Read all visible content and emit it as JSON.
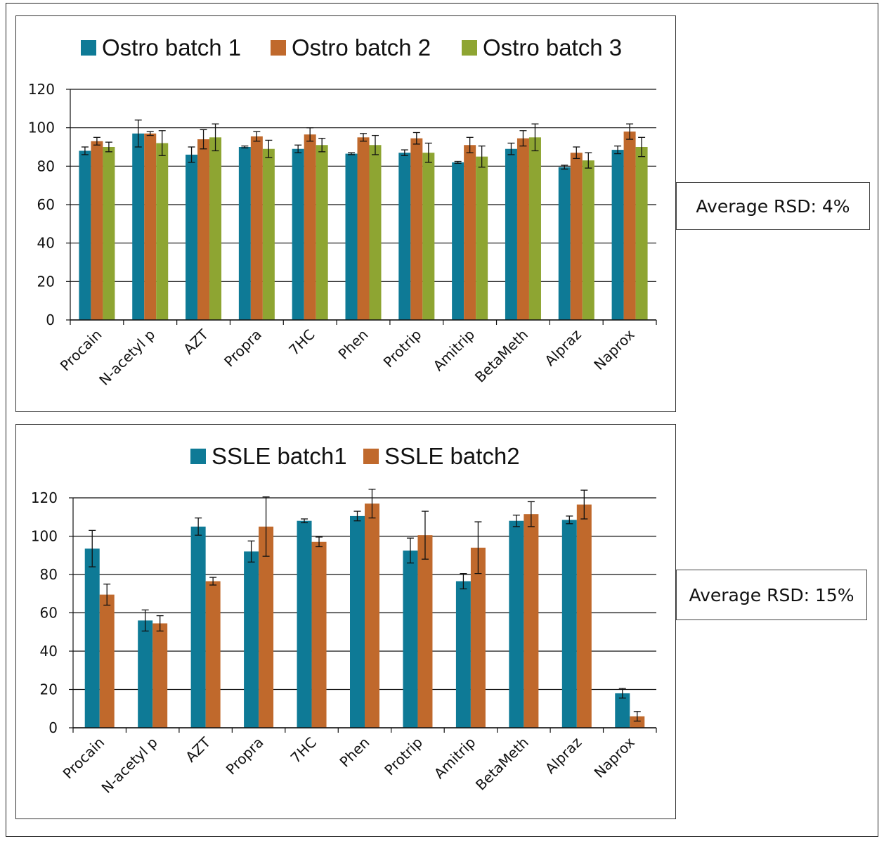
{
  "chart_data": [
    {
      "type": "bar",
      "title": "",
      "xlabel": "",
      "ylabel": "",
      "ylim": [
        0,
        120
      ],
      "yticks": [
        0,
        20,
        40,
        60,
        80,
        100,
        120
      ],
      "grid": "horizontal",
      "legend_position": "top",
      "categories": [
        "Procain",
        "N-acetyl p",
        "AZT",
        "Propra",
        "7HC",
        "Phen",
        "Protrip",
        "Amitrip",
        "BetaMeth",
        "Alpraz",
        "Naprox"
      ],
      "series": [
        {
          "name": "Ostro batch 1",
          "color": "#0e7a96",
          "values": [
            88,
            97,
            86,
            90,
            89,
            86.5,
            87,
            82,
            89,
            79.5,
            88.5
          ],
          "errors": [
            2,
            7,
            4,
            0.5,
            2,
            0.5,
            1.5,
            0.5,
            3,
            1,
            2
          ]
        },
        {
          "name": "Ostro batch 2",
          "color": "#c0692c",
          "values": [
            93,
            97,
            94,
            95.5,
            96.5,
            95,
            94.5,
            91,
            94.5,
            87,
            98
          ],
          "errors": [
            2,
            1,
            5,
            2.5,
            3.5,
            2,
            3,
            4,
            4,
            3,
            4
          ]
        },
        {
          "name": "Ostro batch 3",
          "color": "#8ea532",
          "values": [
            90,
            92,
            95,
            89,
            91,
            91,
            87,
            85,
            95,
            83,
            90
          ],
          "errors": [
            2.5,
            6.5,
            7,
            4.5,
            3.5,
            5,
            5,
            5.5,
            7,
            4,
            5
          ]
        }
      ]
    },
    {
      "type": "bar",
      "title": "",
      "xlabel": "",
      "ylabel": "",
      "ylim": [
        0,
        120
      ],
      "yticks": [
        0,
        20,
        40,
        60,
        80,
        100,
        120
      ],
      "grid": "horizontal",
      "legend_position": "top",
      "categories": [
        "Procain",
        "N-acetyl p",
        "AZT",
        "Propra",
        "7HC",
        "Phen",
        "Protrip",
        "Amitrip",
        "BetaMeth",
        "Alpraz",
        "Naprox"
      ],
      "series": [
        {
          "name": "SSLE batch1",
          "color": "#0e7a96",
          "values": [
            93.5,
            56,
            105,
            92,
            108,
            110.5,
            92.5,
            76.5,
            108,
            108.5,
            18
          ],
          "errors": [
            9.5,
            5.5,
            4.5,
            5.5,
            1,
            2.5,
            6.5,
            4,
            3,
            2,
            2.5
          ]
        },
        {
          "name": "SSLE batch2",
          "color": "#c0692c",
          "values": [
            69.5,
            54.5,
            76.5,
            105,
            97,
            117,
            100.5,
            94,
            111.5,
            116.5,
            6
          ],
          "errors": [
            5.5,
            4,
            2,
            15.5,
            2.5,
            7.5,
            12.5,
            13.5,
            6.5,
            7.5,
            2.5
          ]
        }
      ]
    }
  ],
  "annotations": {
    "rsd_top": "Average RSD: 4%",
    "rsd_bottom": "Average RSD: 15%"
  }
}
